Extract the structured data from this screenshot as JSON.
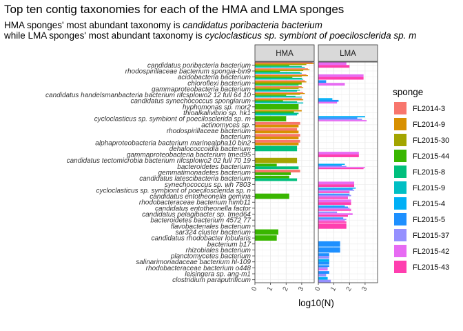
{
  "chart_data": {
    "type": "bar",
    "title": "Top ten contig taxonomies for each of the HMA and LMA sponges",
    "subtitle_line1": {
      "prefix": "HMA sponges' most abundant taxonomy is ",
      "italic": "candidatus poribacteria bacterium"
    },
    "subtitle_line2": {
      "prefix": "while LMA sponges' most abundant taxonomy is ",
      "italic": "cycloclasticus sp. symbiont of poecilosclerida sp. m"
    },
    "xlabel": "log10(N)",
    "x_ticks": [
      "0",
      "1",
      "2",
      "3"
    ],
    "xlim": [
      0,
      3.8
    ],
    "facets": [
      "HMA",
      "LMA"
    ],
    "legend_title": "sponge",
    "legend_position": "right",
    "legend": [
      {
        "name": "FL2014-3",
        "color": "#F8766D"
      },
      {
        "name": "FL2014-9",
        "color": "#D89000"
      },
      {
        "name": "FL2015-30",
        "color": "#A3A500"
      },
      {
        "name": "FL2015-44",
        "color": "#39B600"
      },
      {
        "name": "FL2015-8",
        "color": "#00BF7D"
      },
      {
        "name": "FL2015-9",
        "color": "#00BFC4"
      },
      {
        "name": "FL2015-4",
        "color": "#00B0F6"
      },
      {
        "name": "FL2015-5",
        "color": "#1E90FF"
      },
      {
        "name": "FL2015-37",
        "color": "#9590FF"
      },
      {
        "name": "FL2015-42",
        "color": "#E76BF3"
      },
      {
        "name": "FL2015-43",
        "color": "#FF3EAF"
      }
    ],
    "categories": [
      "candidatus poribacteria bacterium",
      "rhodospirillaceae bacterium spongia-bin9",
      "acidobacteria bacterium",
      "chloroflexi bacterium",
      "gammaproteobacteria bacterium",
      "candidatus handelsmanbacteria bacterium rifcsplowo2 12 full 64 10",
      "candidatus synechococcus spongiarum",
      "hyphomonas sp. mor2",
      "thioalkalivibrio sp. hk1",
      "cycloclasticus sp. symbiont of poecilosclerida sp. m",
      "actinomyces sp.",
      "rhodospirillaceae bacterium",
      "bacterium",
      "alphaproteobacteria bacterium marinealpha10 bin2",
      "dehalococcoidia bacterium",
      "gammaproteobacteria bacterium tmed95",
      "candidatus tectomicrobia bacterium rifcsplowo2 02 full 70 19",
      "bacteroidetes bacterium",
      "gemmatimonadetes bacterium",
      "candidatus latescibacteria bacterium",
      "synechococcus sp. wh 7803",
      "cycloclasticus sp. symbiont of poecilosclerida sp. n",
      "candidatus entotheonella gemina",
      "rhodobacteraceae bacterium himb11",
      "candidatus entotheonella factor",
      "candidatus pelagibacter sp. tmed64",
      "bacteroidetes bacterium 4572 77",
      "flavobacteriales bacterium",
      "sar324 cluster bacterium",
      "candidatus rhodobacter lobularis",
      "bacterium b17",
      "rhizobiales bacterium",
      "planctomycetes bacterium",
      "salinarimonadaceae bacterium hl-109",
      "rhodobacteraceae bacterium o448",
      "leisingera sp. ang-m1",
      "clostridium paraputrificum"
    ],
    "hma_series": [
      {
        "name": "FL2014-3",
        "values": [
          3.7,
          3.4,
          3.3,
          3.2,
          3.0,
          3.1,
          3.0,
          null,
          null,
          null,
          2.9,
          2.7,
          2.9,
          2.9,
          null,
          null,
          null,
          null,
          2.9,
          null,
          null,
          null,
          null,
          null,
          null,
          null,
          null,
          null,
          null,
          null,
          null,
          null,
          null,
          null,
          null,
          null,
          null
        ]
      },
      {
        "name": "FL2014-9",
        "values": [
          3.8,
          3.5,
          3.4,
          3.3,
          3.1,
          3.2,
          3.1,
          null,
          3.0,
          null,
          2.8,
          2.8,
          2.8,
          2.8,
          null,
          null,
          null,
          null,
          null,
          null,
          null,
          null,
          null,
          null,
          null,
          null,
          null,
          null,
          null,
          null,
          null,
          null,
          null,
          null,
          null,
          null,
          null
        ]
      },
      {
        "name": "FL2015-30",
        "values": [
          3.3,
          3.1,
          3.0,
          3.0,
          2.8,
          2.9,
          null,
          null,
          null,
          null,
          null,
          null,
          null,
          null,
          null,
          null,
          2.7,
          null,
          null,
          null,
          null,
          null,
          null,
          null,
          null,
          null,
          null,
          null,
          null,
          null,
          null,
          null,
          null,
          null,
          null,
          null,
          null
        ]
      },
      {
        "name": "FL2015-44",
        "values": [
          2.2,
          1.6,
          2.4,
          3.0,
          1.6,
          2.0,
          1.8,
          2.8,
          2.5,
          2.0,
          null,
          null,
          null,
          null,
          null,
          null,
          null,
          1.4,
          2.3,
          2.2,
          null,
          null,
          2.2,
          null,
          null,
          null,
          null,
          null,
          1.5,
          1.4,
          null,
          null,
          null,
          null,
          null,
          null,
          null
        ]
      },
      {
        "name": "FL2015-8",
        "values": [
          3.0,
          2.9,
          3.0,
          2.8,
          2.9,
          2.6,
          2.7,
          null,
          2.8,
          null,
          null,
          null,
          null,
          null,
          2.7,
          null,
          null,
          2.8,
          null,
          2.7,
          null,
          null,
          null,
          null,
          null,
          null,
          null,
          null,
          null,
          null,
          null,
          null,
          null,
          null,
          null,
          null,
          null
        ]
      },
      {
        "name": "FL2015-9",
        "values": [
          3.2,
          3.0,
          3.1,
          null,
          2.7,
          3.0,
          3.1,
          null,
          2.7,
          null,
          null,
          null,
          null,
          null,
          null,
          null,
          null,
          null,
          null,
          null,
          null,
          null,
          null,
          null,
          null,
          null,
          null,
          null,
          null,
          null,
          null,
          null,
          null,
          null,
          null,
          null,
          null
        ]
      }
    ],
    "lma_series": [
      {
        "name": "FL2015-4",
        "values": [
          null,
          null,
          null,
          null,
          null,
          null,
          0.9,
          null,
          null,
          3.0,
          null,
          null,
          null,
          null,
          null,
          null,
          null,
          1.7,
          null,
          null,
          null,
          2.4,
          null,
          null,
          1.7,
          null,
          null,
          null,
          null,
          null,
          null,
          null,
          null,
          0.7,
          null,
          null,
          0.6
        ]
      },
      {
        "name": "FL2015-5",
        "values": [
          null,
          null,
          null,
          0.5,
          null,
          null,
          1.3,
          null,
          null,
          2.5,
          null,
          null,
          null,
          null,
          null,
          null,
          null,
          1.5,
          null,
          null,
          null,
          2.2,
          2.0,
          null,
          1.9,
          null,
          1.6,
          null,
          null,
          null,
          1.4,
          1.4,
          0.7,
          0.7,
          0.7,
          0.7,
          null
        ]
      },
      {
        "name": "FL2015-37",
        "values": [
          null,
          null,
          null,
          null,
          null,
          null,
          null,
          null,
          null,
          2.8,
          null,
          null,
          null,
          null,
          null,
          null,
          null,
          1.8,
          null,
          null,
          null,
          2.3,
          2.1,
          null,
          2.0,
          1.2,
          1.8,
          null,
          null,
          null,
          null,
          null,
          0.7,
          null,
          0.6,
          0.5,
          0.8
        ]
      },
      {
        "name": "FL2015-42",
        "values": [
          1.8,
          null,
          2.9,
          1.7,
          null,
          null,
          1.2,
          null,
          null,
          3.1,
          null,
          null,
          null,
          null,
          null,
          2.6,
          null,
          3.0,
          null,
          null,
          2.3,
          2.0,
          1.9,
          2.1,
          2.1,
          2.2,
          1.7,
          null,
          null,
          null,
          null,
          null,
          null,
          null,
          0.6,
          null,
          null
        ]
      },
      {
        "name": "FL2015-43",
        "values": [
          2.0,
          null,
          2.9,
          null,
          null,
          null,
          null,
          null,
          null,
          null,
          null,
          null,
          null,
          null,
          null,
          2.6,
          null,
          2.9,
          null,
          null,
          2.3,
          2.0,
          1.9,
          2.1,
          2.1,
          1.9,
          1.8,
          1.8,
          null,
          null,
          null,
          null,
          null,
          null,
          null,
          null,
          null
        ]
      }
    ]
  }
}
